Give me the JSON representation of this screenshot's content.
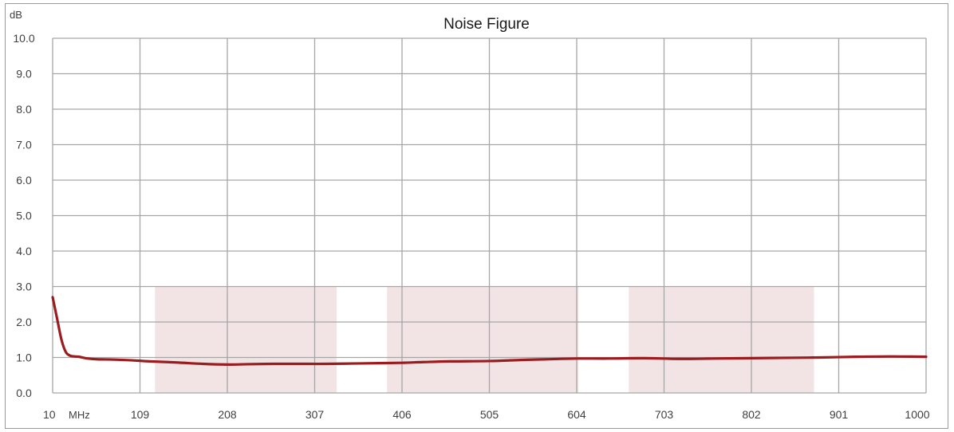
{
  "chart_data": {
    "type": "line",
    "title": "Noise Figure",
    "ylabel": "dB",
    "xlabel": "MHz",
    "xlim": [
      10,
      1000
    ],
    "ylim": [
      0,
      10
    ],
    "grid": true,
    "x_ticks": [
      10,
      109,
      208,
      307,
      406,
      505,
      604,
      703,
      802,
      901,
      1000
    ],
    "y_ticks": [
      0.0,
      1.0,
      2.0,
      3.0,
      4.0,
      5.0,
      6.0,
      7.0,
      8.0,
      9.0,
      10.0
    ],
    "shaded_bands": [
      {
        "x": [
          126,
          332
        ],
        "y": [
          0,
          3
        ]
      },
      {
        "x": [
          389,
          606
        ],
        "y": [
          0,
          3
        ]
      },
      {
        "x": [
          663,
          873
        ],
        "y": [
          0,
          3
        ]
      }
    ],
    "band_color": "#f2e4e5",
    "series": [
      {
        "color": "#9b1c1f",
        "x": [
          10,
          15,
          20,
          25,
          30,
          35,
          40,
          50,
          60,
          80,
          100,
          120,
          150,
          180,
          208,
          230,
          260,
          290,
          320,
          350,
          380,
          406,
          430,
          460,
          505,
          540,
          570,
          604,
          640,
          680,
          720,
          760,
          802,
          840,
          880,
          920,
          960,
          1000
        ],
        "y": [
          2.7,
          2.1,
          1.5,
          1.15,
          1.05,
          1.03,
          1.02,
          0.97,
          0.95,
          0.94,
          0.92,
          0.89,
          0.86,
          0.82,
          0.8,
          0.81,
          0.82,
          0.82,
          0.82,
          0.83,
          0.84,
          0.85,
          0.87,
          0.89,
          0.9,
          0.93,
          0.95,
          0.97,
          0.97,
          0.98,
          0.96,
          0.97,
          0.98,
          0.99,
          1.0,
          1.02,
          1.03,
          1.02
        ]
      }
    ]
  }
}
